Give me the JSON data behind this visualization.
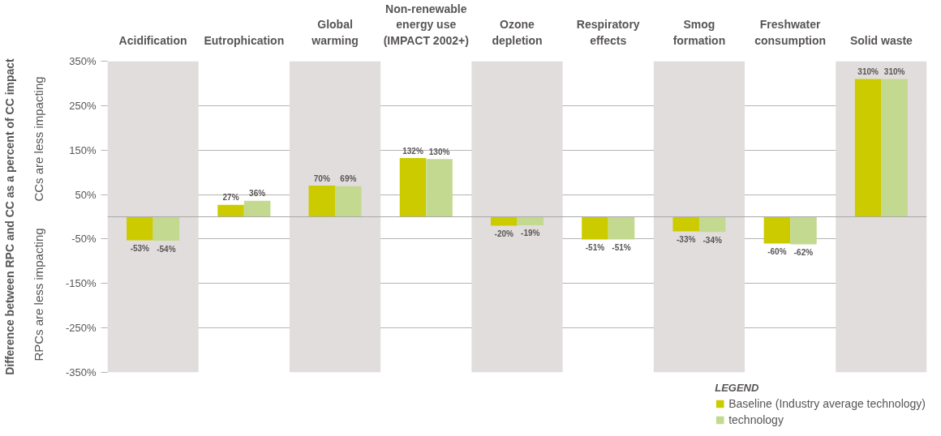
{
  "chart_data": {
    "type": "bar",
    "ylabel": "Difference between RPC and CC as a percent of CC impact",
    "categories": [
      "Acidification",
      "Eutrophication",
      "Global\nwarming",
      "Non-renewable\nenergy use\n(IMPACT 2002+)",
      "Ozone\ndepletion",
      "Respiratory\neffects",
      "Smog\nformation",
      "Freshwater\nconsumption",
      "Solid waste"
    ],
    "series": [
      {
        "name": "Baseline (Industry average technology)",
        "color": "#cccb00",
        "values": [
          -53,
          27,
          70,
          132,
          -20,
          -51,
          -33,
          -60,
          310
        ],
        "value_labels": [
          "-53%",
          "27%",
          "70%",
          "132%",
          "-20%",
          "-51%",
          "-33%",
          "-60%",
          "310%"
        ]
      },
      {
        "name": "technology",
        "color": "#c4d990",
        "values": [
          -54,
          36,
          69,
          130,
          -19,
          -51,
          -34,
          -62,
          310
        ],
        "value_labels": [
          "-54%",
          "36%",
          "69%",
          "130%",
          "-19%",
          "-51%",
          "-34%",
          "-62%",
          "310%"
        ]
      }
    ],
    "ylim": [
      -350,
      350
    ],
    "yticks": [
      {
        "value": -350,
        "label": "-350%"
      },
      {
        "value": -250,
        "label": "-250%"
      },
      {
        "value": -150,
        "label": "-150%"
      },
      {
        "value": -50,
        "label": "-50%"
      },
      {
        "value": 50,
        "label": "50%"
      },
      {
        "value": 150,
        "label": "150%"
      },
      {
        "value": 250,
        "label": "250%"
      },
      {
        "value": 350,
        "label": "350%"
      }
    ],
    "grid": "y",
    "legend": "bottom right",
    "legend_title": "LEGEND",
    "annotations": [
      "CCs are less impacting",
      "RPCs are less impacting"
    ],
    "ref_lines": [
      {
        "axis": "y",
        "value": 0,
        "color": "#a9a9a9"
      }
    ],
    "bands": [
      {
        "axis": "x",
        "from": "Acidification",
        "to": "Acidification",
        "color": "#e1dddc"
      },
      {
        "axis": "x",
        "from": "Global\nwarming",
        "to": "Global\nwarming",
        "color": "#e1dddc"
      },
      {
        "axis": "x",
        "from": "Ozone\ndepletion",
        "to": "Ozone\ndepletion",
        "color": "#e1dddc"
      },
      {
        "axis": "x",
        "from": "Smog\nformation",
        "to": "Smog\nformation",
        "color": "#e1dddc"
      },
      {
        "axis": "x",
        "from": "Solid waste",
        "to": "Solid waste",
        "color": "#e1dddc"
      }
    ]
  }
}
